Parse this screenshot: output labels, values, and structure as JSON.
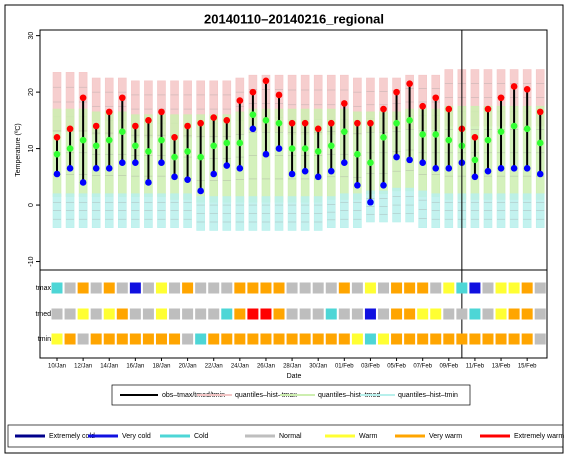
{
  "chart_data": {
    "type": "climate",
    "title": "20140110–20140216_regional",
    "ylabel": "Temperature (ºC)",
    "xlabel": "Date",
    "categories": [
      "10/Jan",
      null,
      "12/Jan",
      null,
      "14/Jan",
      null,
      "16/Jan",
      null,
      "18/Jan",
      null,
      "20/Jan",
      null,
      "22/Jan",
      null,
      "24/Jan",
      null,
      "26/Jan",
      null,
      "28/Jan",
      null,
      "30/Jan",
      null,
      "01/Feb",
      null,
      "03/Feb",
      null,
      "05/Feb",
      null,
      "07/Feb",
      null,
      "09/Feb",
      null,
      "11/Feb",
      null,
      "13/Feb",
      null,
      "15/Feb",
      null
    ],
    "ylim": [
      -11.5,
      31
    ],
    "yticks": [
      -10,
      0,
      10,
      20,
      30
    ],
    "vline": 31,
    "obs_label": "obs–tmax/tmed/tmin",
    "obs_color": "#000000",
    "series": [
      {
        "color": "#ff0000",
        "values": [
          12,
          13.5,
          19,
          14,
          16.5,
          19,
          14,
          15,
          16.5,
          12,
          14,
          14.5,
          15.5,
          15,
          18.5,
          20,
          22,
          19.5,
          14.5,
          14.5,
          13.5,
          14.5,
          18,
          14.5,
          14.5,
          17,
          20,
          21.5,
          17.5,
          19,
          17,
          13.5,
          12,
          17,
          19,
          21,
          20.5,
          16.5
        ]
      },
      {
        "color": "#33ff33",
        "values": [
          9,
          10,
          11.5,
          10.5,
          11.5,
          13,
          10.5,
          9.5,
          11.5,
          8.5,
          9.5,
          8.5,
          10.5,
          11,
          11,
          16,
          15,
          14.5,
          10,
          10,
          9.5,
          10.5,
          13,
          9,
          7.5,
          12,
          14.5,
          15,
          12.5,
          12.5,
          11.5,
          10.5,
          8,
          11.5,
          13,
          14,
          13.5,
          11
        ]
      },
      {
        "color": "#0000ff",
        "values": [
          5.5,
          6.5,
          4,
          6.5,
          6.5,
          7.5,
          7.5,
          4,
          7.5,
          5,
          4.5,
          2.5,
          5.5,
          7,
          6.5,
          13.5,
          9,
          10,
          5.5,
          6,
          5,
          6,
          7.5,
          3.5,
          0.5,
          3.5,
          8.5,
          8,
          7.5,
          6.5,
          6.5,
          7.5,
          5,
          6,
          6.5,
          6.5,
          6.5,
          5.5
        ]
      }
    ],
    "quantiles": [
      {
        "name": "quantiles–hist–tmax",
        "color": "#f4c6c6",
        "low": [
          13,
          13,
          13,
          12.5,
          12.5,
          12.5,
          12,
          12,
          12,
          12,
          12,
          12,
          12,
          12,
          12.5,
          13,
          13,
          13,
          12.5,
          12.5,
          12.5,
          12.5,
          12.5,
          12.5,
          13,
          13,
          13.5,
          13.5,
          13.5,
          13.5,
          14,
          14,
          14,
          14,
          14,
          14,
          14,
          14
        ],
        "high": [
          23.5,
          23.5,
          23.5,
          22.5,
          22.5,
          22.5,
          22,
          22,
          22,
          22,
          22,
          22,
          22,
          22,
          22.5,
          23,
          23,
          23,
          23,
          23,
          23,
          23,
          23,
          22.5,
          22.5,
          22.5,
          22.5,
          23,
          23,
          23,
          24,
          24,
          24,
          24,
          24,
          24,
          24,
          24
        ]
      },
      {
        "name": "quantiles–hist–tmed",
        "color": "#cdeeb0",
        "low": [
          1.5,
          1.5,
          1.5,
          1.5,
          1.5,
          1.5,
          1.5,
          1.5,
          1.5,
          1,
          1,
          0.5,
          0.5,
          0.5,
          0.5,
          0.5,
          0.5,
          0.5,
          0.5,
          0.5,
          0.5,
          1,
          1,
          1,
          2,
          2,
          2.5,
          2.5,
          1.5,
          1.5,
          1,
          1,
          1,
          1,
          1,
          1,
          1,
          1
        ],
        "high": [
          17,
          17,
          17,
          16.5,
          16.5,
          16.5,
          16,
          16,
          16,
          16,
          16,
          16,
          16,
          16,
          16.5,
          17,
          17,
          17,
          17,
          17,
          17,
          17,
          17,
          16.5,
          16.5,
          16.5,
          16.5,
          17,
          17,
          17,
          17.5,
          17.5,
          17.5,
          17.5,
          17.5,
          17.5,
          17.5,
          17.5
        ]
      },
      {
        "name": "quantiles–hist–tmin",
        "color": "#b8f0ec",
        "low": [
          -4,
          -4,
          -4,
          -4,
          -4,
          -4,
          -4,
          -4,
          -4,
          -4,
          -4,
          -4.5,
          -4.5,
          -4.5,
          -4.5,
          -4.5,
          -4.5,
          -4.5,
          -4.5,
          -4.5,
          -4.5,
          -4,
          -4,
          -4,
          -3,
          -3,
          -3,
          -3,
          -4,
          -4,
          -4,
          -4,
          -4,
          -4,
          -4,
          -4,
          -4,
          -4
        ],
        "high": [
          2,
          2,
          2,
          2,
          2,
          2,
          2,
          2,
          2,
          2,
          2,
          1.5,
          1.5,
          1.5,
          1.5,
          1.5,
          1.5,
          1.5,
          1.5,
          1.5,
          1.5,
          1.5,
          2,
          2,
          2.5,
          2.5,
          3,
          3,
          2.5,
          2,
          2,
          2,
          2,
          2,
          2,
          2,
          2,
          2
        ]
      }
    ],
    "heatmap": {
      "classes": [
        {
          "name": "Extremely cold",
          "color": "#00008b"
        },
        {
          "name": "Very cold",
          "color": "#1010e0"
        },
        {
          "name": "Cold",
          "color": "#4dd6d6"
        },
        {
          "name": "Normal",
          "color": "#bebebe"
        },
        {
          "name": "Warm",
          "color": "#ffff33"
        },
        {
          "name": "Very warm",
          "color": "#ffa500"
        },
        {
          "name": "Extremely warm",
          "color": "#ff0000"
        }
      ],
      "rows": [
        {
          "name": "tmax",
          "values": [
            2,
            3,
            5,
            3,
            5,
            3,
            1,
            3,
            4,
            3,
            5,
            3,
            3,
            3,
            5,
            5,
            5,
            5,
            3,
            3,
            3,
            3,
            5,
            3,
            4,
            3,
            5,
            5,
            5,
            3,
            4,
            2,
            1,
            3,
            4,
            4,
            5,
            3
          ]
        },
        {
          "name": "tmed",
          "values": [
            3,
            3,
            4,
            3,
            4,
            5,
            3,
            3,
            4,
            3,
            3,
            3,
            3,
            2,
            5,
            6,
            6,
            5,
            3,
            3,
            3,
            2,
            3,
            3,
            1,
            3,
            5,
            5,
            4,
            4,
            3,
            3,
            2,
            3,
            4,
            5,
            5,
            3
          ]
        },
        {
          "name": "tmin",
          "values": [
            4,
            5,
            3,
            5,
            5,
            5,
            5,
            5,
            5,
            5,
            3,
            2,
            5,
            5,
            5,
            5,
            5,
            5,
            5,
            5,
            5,
            5,
            5,
            4,
            2,
            4,
            5,
            5,
            5,
            5,
            5,
            5,
            5,
            5,
            5,
            5,
            5,
            3
          ]
        }
      ]
    }
  }
}
